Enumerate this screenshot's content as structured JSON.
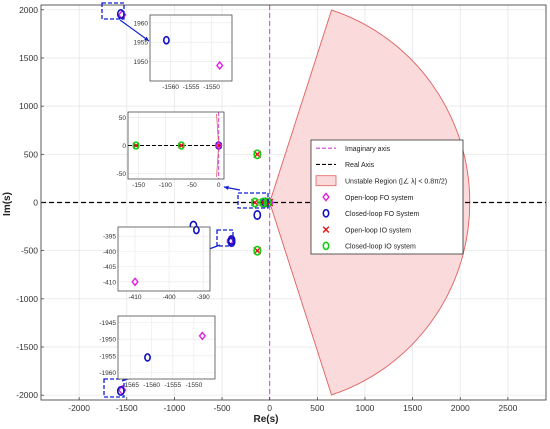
{
  "chart_data": {
    "type": "scatter",
    "title": "",
    "xlabel": "Re(s)",
    "ylabel": "Im(s)",
    "xlim": [
      -2400,
      2900
    ],
    "ylim": [
      -2050,
      2050
    ],
    "x_ticks": [
      -2000,
      -1500,
      -1000,
      -500,
      0,
      500,
      1000,
      1500,
      2000,
      2500
    ],
    "y_ticks": [
      -2000,
      -1500,
      -1000,
      -500,
      0,
      500,
      1000,
      1500,
      2000
    ],
    "grid": true,
    "unstable_region": {
      "label": "Unstable Region (|∠ λ| < 0.8π/2)",
      "radius": 2100,
      "half_angle_rad": 1.2566,
      "fill": "#fadadb",
      "stroke": "#e06060"
    },
    "reference_lines": [
      {
        "name": "Imaginary axis",
        "orientation": "vertical",
        "value": 0,
        "color": "#cc44cc"
      },
      {
        "name": "Real Axis",
        "orientation": "horizontal",
        "value": 0,
        "color": "#000000"
      }
    ],
    "series": [
      {
        "name": "Open-loop FO system",
        "marker": "diamond",
        "color": "#e020e0",
        "points": [
          [
            -1548,
            1948
          ],
          [
            -1548,
            -1948
          ],
          [
            -410,
            -390
          ],
          [
            -410,
            -410
          ],
          [
            -2,
            2
          ],
          [
            -2,
            -2
          ]
        ]
      },
      {
        "name": "Closed-loop FO System",
        "marker": "circle",
        "color": "#1010c0",
        "points": [
          [
            -1562,
            1956
          ],
          [
            -1562,
            -1956
          ],
          [
            -800,
            -240
          ],
          [
            -400,
            -390
          ],
          [
            -400,
            -410
          ],
          [
            -130,
            -130
          ],
          [
            -45,
            0
          ]
        ]
      },
      {
        "name": "Open-loop IO system",
        "marker": "x",
        "color": "#e01010",
        "points": [
          [
            -130,
            500
          ],
          [
            -130,
            -500
          ],
          [
            -155,
            0
          ],
          [
            -70,
            0
          ],
          [
            -2,
            0
          ]
        ]
      },
      {
        "name": "Closed-loop IO system",
        "marker": "circle",
        "color": "#10d010",
        "points": [
          [
            -130,
            500
          ],
          [
            -130,
            -500
          ],
          [
            -155,
            0
          ],
          [
            -70,
            0
          ],
          [
            -20,
            0
          ]
        ]
      }
    ],
    "legend": {
      "placement": "right-center",
      "entries": [
        "Imaginary axis",
        "Real Axis",
        "Unstable Region (|∠ λ| < 0.8π/2)",
        "Open-loop FO system",
        "Closed-loop FO System",
        "Open-loop IO system",
        "Closed-loop IO system"
      ]
    },
    "insets": [
      {
        "xlim": [
          -1565,
          -1545
        ],
        "ylim": [
          1945,
          1962
        ],
        "x_ticks": [
          -1560,
          -1555,
          -1550
        ],
        "y_ticks": [
          1950,
          1955,
          1960
        ],
        "points": [
          {
            "series": "Closed-loop FO System",
            "x": -1561,
            "y": 1955.5
          },
          {
            "series": "Open-loop FO system",
            "x": -1548,
            "y": 1949
          }
        ]
      },
      {
        "xlim": [
          -170,
          10
        ],
        "ylim": [
          -60,
          60
        ],
        "x_ticks": [
          -150,
          -100,
          -50,
          0
        ],
        "y_ticks": [
          -50,
          0,
          50
        ],
        "points": [
          {
            "series": "Open-loop IO system",
            "x": -155,
            "y": 0
          },
          {
            "series": "Closed-loop IO system",
            "x": -155,
            "y": 0
          },
          {
            "series": "Open-loop IO system",
            "x": -70,
            "y": 0
          },
          {
            "series": "Closed-loop IO system",
            "x": -70,
            "y": 0
          },
          {
            "series": "Open-loop IO system",
            "x": 0,
            "y": 0
          },
          {
            "series": "Closed-loop FO System",
            "x": 0,
            "y": 0
          },
          {
            "series": "Open-loop FO system",
            "x": 0,
            "y": 0
          }
        ]
      },
      {
        "xlim": [
          -415,
          -388
        ],
        "ylim": [
          -413,
          -392
        ],
        "x_ticks": [
          -410,
          -400,
          -390
        ],
        "y_ticks": [
          -410,
          -405,
          -400,
          -395
        ],
        "points": [
          {
            "series": "Open-loop FO system",
            "x": -410,
            "y": -410
          },
          {
            "series": "Closed-loop FO System",
            "x": -392,
            "y": -393
          }
        ]
      },
      {
        "xlim": [
          -1568,
          -1545
        ],
        "ylim": [
          -1962,
          -1943
        ],
        "x_ticks": [
          -1565,
          -1560,
          -1555,
          -1550
        ],
        "y_ticks": [
          -1960,
          -1955,
          -1950,
          -1945
        ],
        "points": [
          {
            "series": "Closed-loop FO System",
            "x": -1561,
            "y": -1955.5
          },
          {
            "series": "Open-loop FO system",
            "x": -1548,
            "y": -1949
          }
        ]
      }
    ]
  }
}
